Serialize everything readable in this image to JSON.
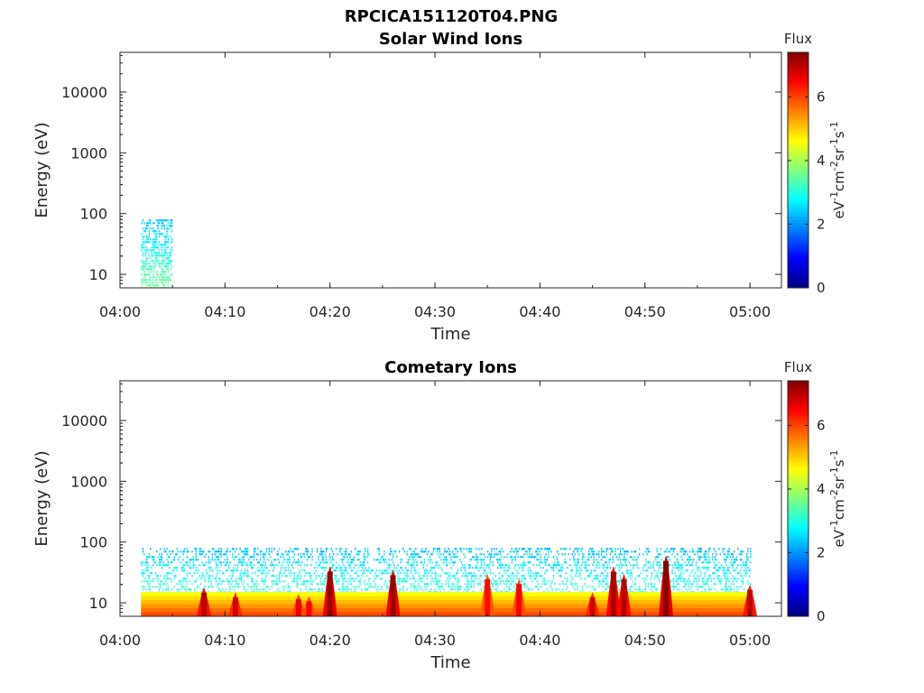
{
  "figure": {
    "title": "RPCICA151120T04.PNG"
  },
  "chart_data": [
    {
      "type": "heatmap",
      "title": "Solar Wind Ions",
      "xlabel": "Time",
      "ylabel": "Energy (eV)",
      "y_scale": "log",
      "ylim": [
        6,
        45000
      ],
      "xlim": [
        "04:00",
        "05:03"
      ],
      "x_ticks": [
        "04:00",
        "04:10",
        "04:20",
        "04:30",
        "04:40",
        "04:50",
        "05:00"
      ],
      "y_ticks": [
        10,
        100,
        1000,
        10000
      ],
      "y_tick_labels": [
        "10",
        "100",
        "1000",
        "10000"
      ],
      "colorbar": {
        "label": "Flux",
        "units_base": "eV",
        "units_text": [
          "-1",
          "cm",
          "-2",
          "sr",
          "-1",
          "s",
          "-1"
        ],
        "range": [
          0,
          7.4
        ],
        "ticks": [
          0,
          2,
          4,
          6
        ],
        "tick_labels": [
          "0",
          "2",
          "4",
          "6"
        ],
        "colormap": "jet"
      },
      "regions": [
        {
          "t_start": "04:02",
          "t_end": "04:05",
          "e_min": 6,
          "e_max": 80,
          "flux_low": 2.3,
          "flux_high": 3.6
        }
      ]
    },
    {
      "type": "heatmap",
      "title": "Cometary Ions",
      "xlabel": "Time",
      "ylabel": "Energy (eV)",
      "y_scale": "log",
      "ylim": [
        6,
        45000
      ],
      "xlim": [
        "04:00",
        "05:03"
      ],
      "x_ticks": [
        "04:00",
        "04:10",
        "04:20",
        "04:30",
        "04:40",
        "04:50",
        "05:00"
      ],
      "y_ticks": [
        10,
        100,
        1000,
        10000
      ],
      "y_tick_labels": [
        "10",
        "100",
        "1000",
        "10000"
      ],
      "colorbar": {
        "label": "Flux",
        "units_base": "eV",
        "units_text": [
          "-1",
          "cm",
          "-2",
          "sr",
          "-1",
          "s",
          "-1"
        ],
        "range": [
          0,
          7.4
        ],
        "ticks": [
          0,
          2,
          4,
          6
        ],
        "tick_labels": [
          "0",
          "2",
          "4",
          "6"
        ],
        "colormap": "jet"
      },
      "background": {
        "t_start": "04:02",
        "t_end": "05:00",
        "e_min": 6,
        "e_max": 80,
        "flux": 2.8
      },
      "base_band": {
        "t_start": "04:02",
        "t_end": "05:00",
        "e_min": 6,
        "e_max": 15,
        "flux": 5.8
      },
      "spikes": [
        {
          "t": "04:08",
          "e_peak": 18,
          "flux": 7.0
        },
        {
          "t": "04:11",
          "e_peak": 15,
          "flux": 6.8
        },
        {
          "t": "04:17",
          "e_peak": 14,
          "flux": 6.6
        },
        {
          "t": "04:18",
          "e_peak": 13,
          "flux": 6.5
        },
        {
          "t": "04:20",
          "e_peak": 40,
          "flux": 7.2
        },
        {
          "t": "04:26",
          "e_peak": 35,
          "flux": 7.2
        },
        {
          "t": "04:35",
          "e_peak": 30,
          "flux": 6.4
        },
        {
          "t": "04:38",
          "e_peak": 25,
          "flux": 6.5
        },
        {
          "t": "04:45",
          "e_peak": 15,
          "flux": 6.8
        },
        {
          "t": "04:47",
          "e_peak": 40,
          "flux": 7.1
        },
        {
          "t": "04:48",
          "e_peak": 30,
          "flux": 7.0
        },
        {
          "t": "04:52",
          "e_peak": 60,
          "flux": 7.3
        },
        {
          "t": "05:00",
          "e_peak": 20,
          "flux": 6.9
        }
      ]
    }
  ]
}
